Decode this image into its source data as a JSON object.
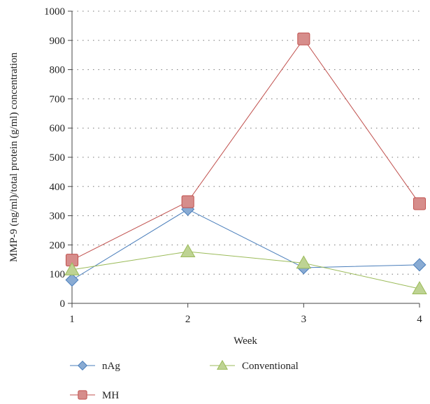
{
  "chart_data": {
    "type": "line",
    "title": "",
    "xlabel": "Week",
    "ylabel": "MMP-9 (ng/ml)/total protein (g/ml) concentration",
    "x": [
      1,
      2,
      3,
      4
    ],
    "x_ticks": [
      "1",
      "2",
      "3",
      "4"
    ],
    "xlim": [
      1,
      4
    ],
    "ylim": [
      0,
      1000
    ],
    "y_ticks": [
      "0",
      "100",
      "200",
      "300",
      "400",
      "500",
      "600",
      "700",
      "800",
      "900",
      "1000"
    ],
    "grid": "horizontal dotted",
    "legend_position": "bottom",
    "series": [
      {
        "name": "nAg",
        "values": [
          80,
          322,
          122,
          132
        ],
        "color": "#4a7ebb",
        "marker": "diamond"
      },
      {
        "name": "MH",
        "values": [
          148,
          348,
          905,
          341
        ],
        "color": "#c0504d",
        "marker": "square"
      },
      {
        "name": "Conventional",
        "values": [
          115,
          177,
          138,
          50
        ],
        "color": "#9bbb59",
        "marker": "triangle"
      }
    ]
  }
}
